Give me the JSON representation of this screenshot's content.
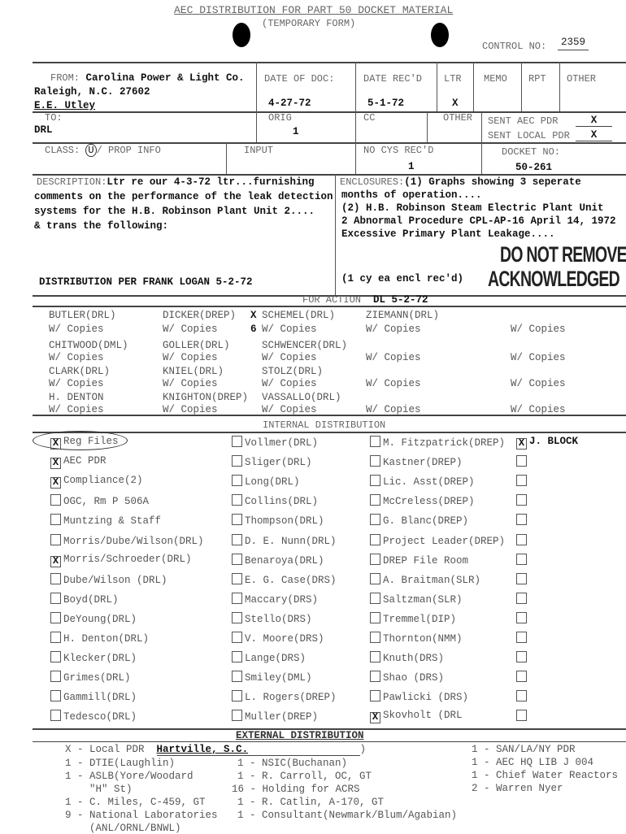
{
  "header": {
    "title": "AEC DISTRIBUTION FOR PART 50 DOCKET MATERIAL",
    "subtitle": "(TEMPORARY FORM)",
    "control_label": "CONTROL NO:",
    "control_value": "2359"
  },
  "from": {
    "label": "FROM:",
    "value": "Carolina Power & Light Co.",
    "line2": "Raleigh, N.C.   27602",
    "line3": "E.E. Utley"
  },
  "date_of_doc": {
    "label": "DATE OF DOC:",
    "value": "4-27-72"
  },
  "date_recd": {
    "label": "DATE REC'D",
    "value": "5-1-72"
  },
  "ltr": {
    "label": "LTR",
    "value": "X"
  },
  "memo": {
    "label": "MEMO"
  },
  "rpt": {
    "label": "RPT"
  },
  "other": {
    "label": "OTHER"
  },
  "to": {
    "label": "TO:",
    "value": "DRL"
  },
  "orig": {
    "label": "ORIG",
    "value": "1"
  },
  "cc": {
    "label": "CC"
  },
  "other2": {
    "label": "OTHER"
  },
  "sent": {
    "aec_pdr": "SENT AEC PDR",
    "aec_mark": "X",
    "local_pdr": "SENT LOCAL PDR",
    "local_mark": "X"
  },
  "class": {
    "label": "CLASS:",
    "circled": "U",
    "value": "/ PROP INFO"
  },
  "input": {
    "label": "INPUT"
  },
  "no_cys": {
    "label": "NO CYS REC'D",
    "value": "1"
  },
  "docket": {
    "label": "DOCKET NO:",
    "value": "50-261"
  },
  "description": {
    "label": "DESCRIPTION:",
    "lines": [
      "Ltr re our 4-3-72 ltr...furnishing",
      "comments on the performance of the leak detection",
      "systems for the H.B. Robinson Plant Unit 2....",
      "& trans the following:"
    ],
    "distribution": "DISTRIBUTION PER FRANK LOGAN 5-2-72"
  },
  "enclosures": {
    "label": "ENCLOSURES:",
    "lines": [
      "(1)  Graphs showing 3 seperate",
      "months of operation....",
      "(2)  H.B. Robinson Steam Electric Plant Unit",
      "2 Abnormal Procedure CPL-AP-16 April 14, 1972",
      "Excessive Primary Plant Leakage...."
    ],
    "received": "(1 cy ea encl rec'd)",
    "stamp1": "DO NOT REMOVE",
    "stamp2": "ACKNOWLEDGED"
  },
  "for_action": {
    "label": "FOR ACTION",
    "note": "DL  5-2-72",
    "copies_label": "W/  Copies",
    "rows": [
      {
        "names": [
          "BUTLER(DRL)",
          "DICKER(DREP)",
          "SCHEMEL(DRL)",
          "ZIEMANN(DRL)"
        ],
        "marked": "X",
        "count": "6"
      },
      {
        "names": [
          "CHITWOOD(DML)",
          "GOLLER(DRL)",
          "SCHWENCER(DRL)",
          ""
        ]
      },
      {
        "names": [
          "CLARK(DRL)",
          "KNIEL(DRL)",
          "STOLZ(DRL)",
          ""
        ]
      },
      {
        "names": [
          "H. DENTON",
          "KNIGHTON(DREP)",
          "VASSALLO(DRL)",
          ""
        ]
      }
    ]
  },
  "internal": {
    "label": "INTERNAL DISTRIBUTION",
    "columns": [
      [
        {
          "label": "Reg Files",
          "checked": true
        },
        {
          "label": "AEC PDR",
          "checked": true
        },
        {
          "label": "Compliance(2)",
          "checked": true
        },
        {
          "label": "OGC, Rm P 506A",
          "checked": false
        },
        {
          "label": "Muntzing & Staff",
          "checked": false
        },
        {
          "label": "Morris/Dube/Wilson(DRL)",
          "checked": false
        },
        {
          "label": "Morris/Schroeder(DRL)",
          "checked": true
        },
        {
          "label": "Dube/Wilson (DRL)",
          "checked": false
        },
        {
          "label": "Boyd(DRL)",
          "checked": false
        },
        {
          "label": "DeYoung(DRL)",
          "checked": false
        },
        {
          "label": "H. Denton(DRL)",
          "checked": false
        },
        {
          "label": "Klecker(DRL)",
          "checked": false
        },
        {
          "label": "Grimes(DRL)",
          "checked": false
        },
        {
          "label": "Gammill(DRL)",
          "checked": false
        },
        {
          "label": "Tedesco(DRL)",
          "checked": false
        }
      ],
      [
        {
          "label": "Vollmer(DRL)",
          "checked": false
        },
        {
          "label": "Sliger(DRL)",
          "checked": false
        },
        {
          "label": "Long(DRL)",
          "checked": false
        },
        {
          "label": "Collins(DRL)",
          "checked": false
        },
        {
          "label": "Thompson(DRL)",
          "checked": false
        },
        {
          "label": "D. E. Nunn(DRL)",
          "checked": false
        },
        {
          "label": "Benaroya(DRL)",
          "checked": false
        },
        {
          "label": "E. G. Case(DRS)",
          "checked": false
        },
        {
          "label": "Maccary(DRS)",
          "checked": false
        },
        {
          "label": "Stello(DRS)",
          "checked": false
        },
        {
          "label": "V. Moore(DRS)",
          "checked": false
        },
        {
          "label": "Lange(DRS)",
          "checked": false
        },
        {
          "label": "Smiley(DML)",
          "checked": false
        },
        {
          "label": "L. Rogers(DREP)",
          "checked": false
        },
        {
          "label": "Muller(DREP)",
          "checked": false
        }
      ],
      [
        {
          "label": "M. Fitzpatrick(DREP)",
          "checked": false
        },
        {
          "label": "Kastner(DREP)",
          "checked": false
        },
        {
          "label": "Lic. Asst(DREP)",
          "checked": false
        },
        {
          "label": "McCreless(DREP)",
          "checked": false
        },
        {
          "label": "G. Blanc(DREP)",
          "checked": false
        },
        {
          "label": "Project Leader(DREP)",
          "checked": false
        },
        {
          "label": "DREP File Room",
          "checked": false
        },
        {
          "label": "A. Braitman(SLR)",
          "checked": false
        },
        {
          "label": "Saltzman(SLR)",
          "checked": false
        },
        {
          "label": "Tremmel(DIP)",
          "checked": false
        },
        {
          "label": "Thornton(NMM)",
          "checked": false
        },
        {
          "label": "Knuth(DRS)",
          "checked": false
        },
        {
          "label": "Shao  (DRS)",
          "checked": false
        },
        {
          "label": "Pawlicki  (DRS)",
          "checked": false
        },
        {
          "label": "Skovholt  (DRL",
          "checked": true
        }
      ],
      [
        {
          "label": "J. BLOCK",
          "checked": true
        },
        {
          "label": "",
          "checked": false
        },
        {
          "label": "",
          "checked": false
        },
        {
          "label": "",
          "checked": false
        },
        {
          "label": "",
          "checked": false
        },
        {
          "label": "",
          "checked": false
        },
        {
          "label": "",
          "checked": false
        },
        {
          "label": "",
          "checked": false
        },
        {
          "label": "",
          "checked": false
        },
        {
          "label": "",
          "checked": false
        },
        {
          "label": "",
          "checked": false
        },
        {
          "label": "",
          "checked": false
        },
        {
          "label": "",
          "checked": false
        },
        {
          "label": "",
          "checked": false
        },
        {
          "label": "",
          "checked": false
        }
      ]
    ]
  },
  "external": {
    "label": "EXTERNAL DISTRIBUTION",
    "local_pdr": {
      "prefix": "X - Local PDR",
      "value": "Hartville, S.C.",
      "suffix": ")"
    },
    "col1": [
      "1 - DTIE(Laughlin)",
      "1 - ASLB(Yore/Woodard",
      "    \"H\" St)",
      "1 - C. Miles, C-459, GT",
      "9 - National Laboratories",
      "    (ANL/ORNL/BNWL)"
    ],
    "col2": [
      "1 - NSIC(Buchanan)",
      "1 - R. Carroll, OC, GT",
      "16 - Holding for ACRS",
      "1 - R. Catlin, A-170, GT",
      "1 - Consultant(Newmark/Blum/Agabian)"
    ],
    "col3": [
      "1 - SAN/LA/NY  PDR",
      "1 - AEC HQ LIB  J 004",
      "1 - Chief Water Reactors",
      "2 - Warren Nyer"
    ]
  }
}
